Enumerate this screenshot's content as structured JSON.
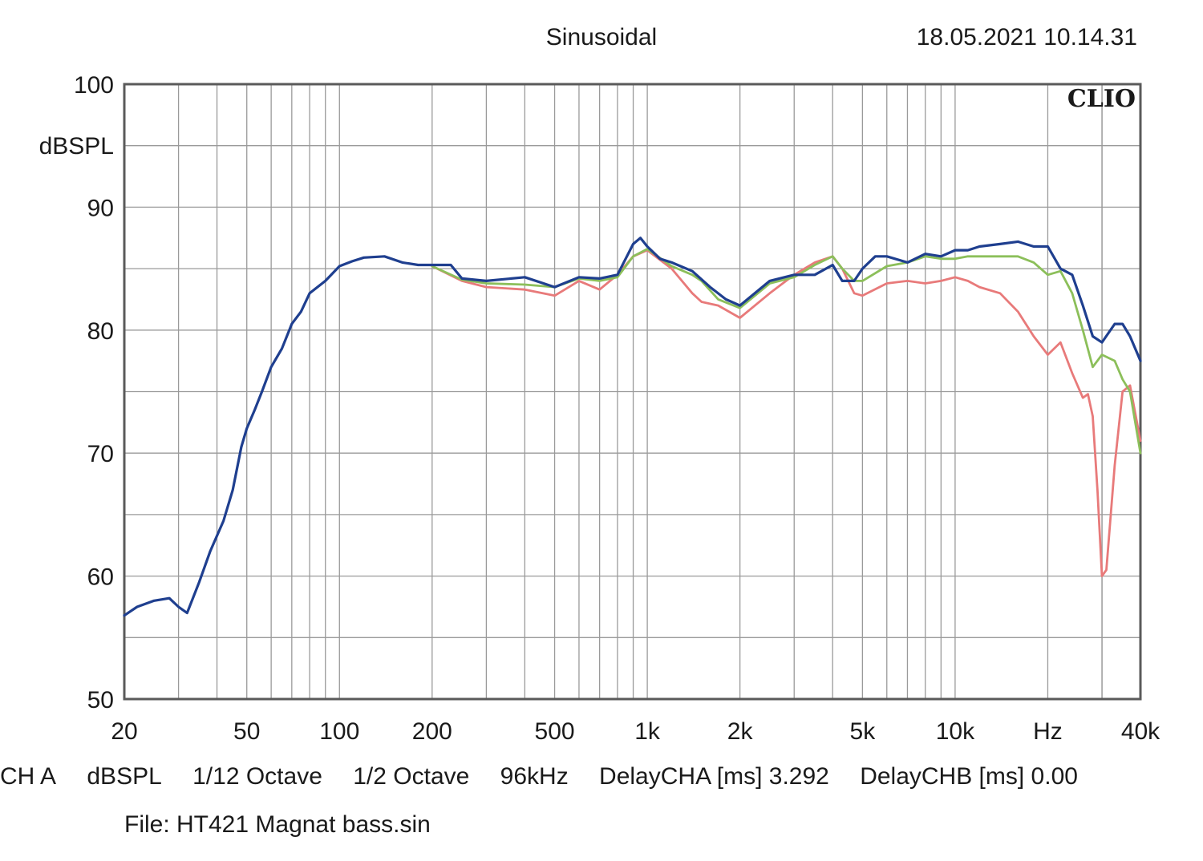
{
  "header": {
    "mode": "Sinusoidal",
    "timestamp": "18.05.2021 10.14.31",
    "brand": "CLIO"
  },
  "chart_data": {
    "type": "line",
    "title": "Sinusoidal",
    "ylabel": "dBSPL",
    "xlabel": "Hz",
    "x_scale": "log",
    "xlim": [
      20,
      40000
    ],
    "ylim": [
      50,
      100
    ],
    "grid": true,
    "x_tick_labels": [
      {
        "value": 20,
        "label": "20"
      },
      {
        "value": 50,
        "label": "50"
      },
      {
        "value": 100,
        "label": "100"
      },
      {
        "value": 200,
        "label": "200"
      },
      {
        "value": 500,
        "label": "500"
      },
      {
        "value": 1000,
        "label": "1k"
      },
      {
        "value": 2000,
        "label": "2k"
      },
      {
        "value": 5000,
        "label": "5k"
      },
      {
        "value": 10000,
        "label": "10k"
      },
      {
        "value": 20000,
        "label": "Hz"
      },
      {
        "value": 40000,
        "label": "40k"
      }
    ],
    "y_tick_labels": [
      {
        "value": 100,
        "label": "100"
      },
      {
        "value": 90,
        "label": "90"
      },
      {
        "value": 80,
        "label": "80"
      },
      {
        "value": 70,
        "label": "70"
      },
      {
        "value": 60,
        "label": "60"
      },
      {
        "value": 50,
        "label": "50"
      }
    ],
    "series": [
      {
        "color": "#e87a7a",
        "x": [
          200,
          250,
          300,
          400,
          500,
          600,
          700,
          800,
          900,
          1000,
          1200,
          1400,
          1500,
          1700,
          2000,
          2500,
          3000,
          3500,
          4000,
          4300,
          4700,
          5000,
          6000,
          7000,
          8000,
          9000,
          10000,
          11000,
          12000,
          14000,
          16000,
          18000,
          20000,
          22000,
          24000,
          26000,
          27000,
          28000,
          29000,
          30000,
          31000,
          33000,
          35000,
          37000,
          40000
        ],
        "y": [
          85.2,
          84.0,
          83.5,
          83.3,
          82.8,
          84.0,
          83.3,
          84.5,
          86.0,
          86.5,
          85.0,
          83.0,
          82.3,
          82.0,
          81.0,
          83.0,
          84.5,
          85.5,
          86.0,
          85.0,
          83.0,
          82.8,
          83.8,
          84.0,
          83.8,
          84.0,
          84.3,
          84.0,
          83.5,
          83.0,
          81.5,
          79.5,
          78.0,
          79.0,
          76.5,
          74.5,
          74.8,
          73.0,
          67.0,
          60.0,
          60.5,
          69.0,
          75.0,
          75.5,
          71.0
        ]
      },
      {
        "color": "#8cbf5a",
        "x": [
          200,
          250,
          300,
          400,
          500,
          600,
          700,
          800,
          900,
          1000,
          1200,
          1400,
          1500,
          1700,
          2000,
          2500,
          3000,
          3500,
          4000,
          4300,
          4700,
          5000,
          6000,
          7000,
          8000,
          9000,
          10000,
          11000,
          12000,
          14000,
          16000,
          18000,
          20000,
          22000,
          24000,
          26000,
          28000,
          30000,
          33000,
          35000,
          37000,
          40000
        ],
        "y": [
          85.2,
          84.1,
          83.8,
          83.7,
          83.5,
          84.2,
          84.0,
          84.3,
          86.0,
          86.6,
          85.2,
          84.5,
          84.0,
          82.5,
          81.8,
          83.8,
          84.3,
          85.3,
          86.0,
          85.0,
          84.0,
          84.0,
          85.2,
          85.5,
          86.0,
          85.8,
          85.8,
          86.0,
          86.0,
          86.0,
          86.0,
          85.5,
          84.5,
          84.8,
          83.0,
          80.0,
          77.0,
          78.0,
          77.5,
          76.0,
          75.0,
          70.0
        ]
      },
      {
        "color": "#1f3f8f",
        "x": [
          20,
          22,
          25,
          28,
          30,
          32,
          35,
          38,
          42,
          45,
          48,
          50,
          53,
          56,
          60,
          65,
          70,
          75,
          80,
          90,
          100,
          110,
          120,
          140,
          160,
          180,
          200,
          230,
          250,
          300,
          400,
          500,
          600,
          700,
          800,
          900,
          950,
          1000,
          1100,
          1200,
          1400,
          1600,
          1800,
          2000,
          2500,
          3000,
          3500,
          4000,
          4300,
          4700,
          5000,
          5500,
          6000,
          7000,
          8000,
          9000,
          10000,
          11000,
          12000,
          14000,
          16000,
          18000,
          20000,
          22000,
          24000,
          26000,
          28000,
          30000,
          33000,
          35000,
          37000,
          40000
        ],
        "y": [
          56.8,
          57.5,
          58.0,
          58.2,
          57.5,
          57.0,
          59.5,
          62.0,
          64.5,
          67.0,
          70.5,
          72.0,
          73.5,
          75.0,
          77.0,
          78.5,
          80.5,
          81.5,
          83.0,
          84.0,
          85.2,
          85.6,
          85.9,
          86.0,
          85.5,
          85.3,
          85.3,
          85.3,
          84.2,
          84.0,
          84.3,
          83.5,
          84.3,
          84.2,
          84.5,
          87.0,
          87.5,
          86.8,
          85.8,
          85.5,
          84.8,
          83.5,
          82.5,
          82.0,
          84.0,
          84.5,
          84.5,
          85.3,
          84.0,
          84.0,
          85.0,
          86.0,
          86.0,
          85.5,
          86.2,
          86.0,
          86.5,
          86.5,
          86.8,
          87.0,
          87.2,
          86.8,
          86.8,
          85.0,
          84.5,
          82.0,
          79.5,
          79.0,
          80.5,
          80.5,
          79.5,
          77.5
        ]
      }
    ]
  },
  "footer": {
    "channel": "CH A",
    "unit": "dBSPL",
    "smoothing": "1/12 Octave",
    "resolution": "1/2 Octave",
    "sample_rate": "96kHz",
    "delay_cha": "DelayCHA [ms] 3.292",
    "delay_chb": "DelayCHB [ms] 0.00",
    "file": "File: HT421 Magnat bass.sin"
  }
}
